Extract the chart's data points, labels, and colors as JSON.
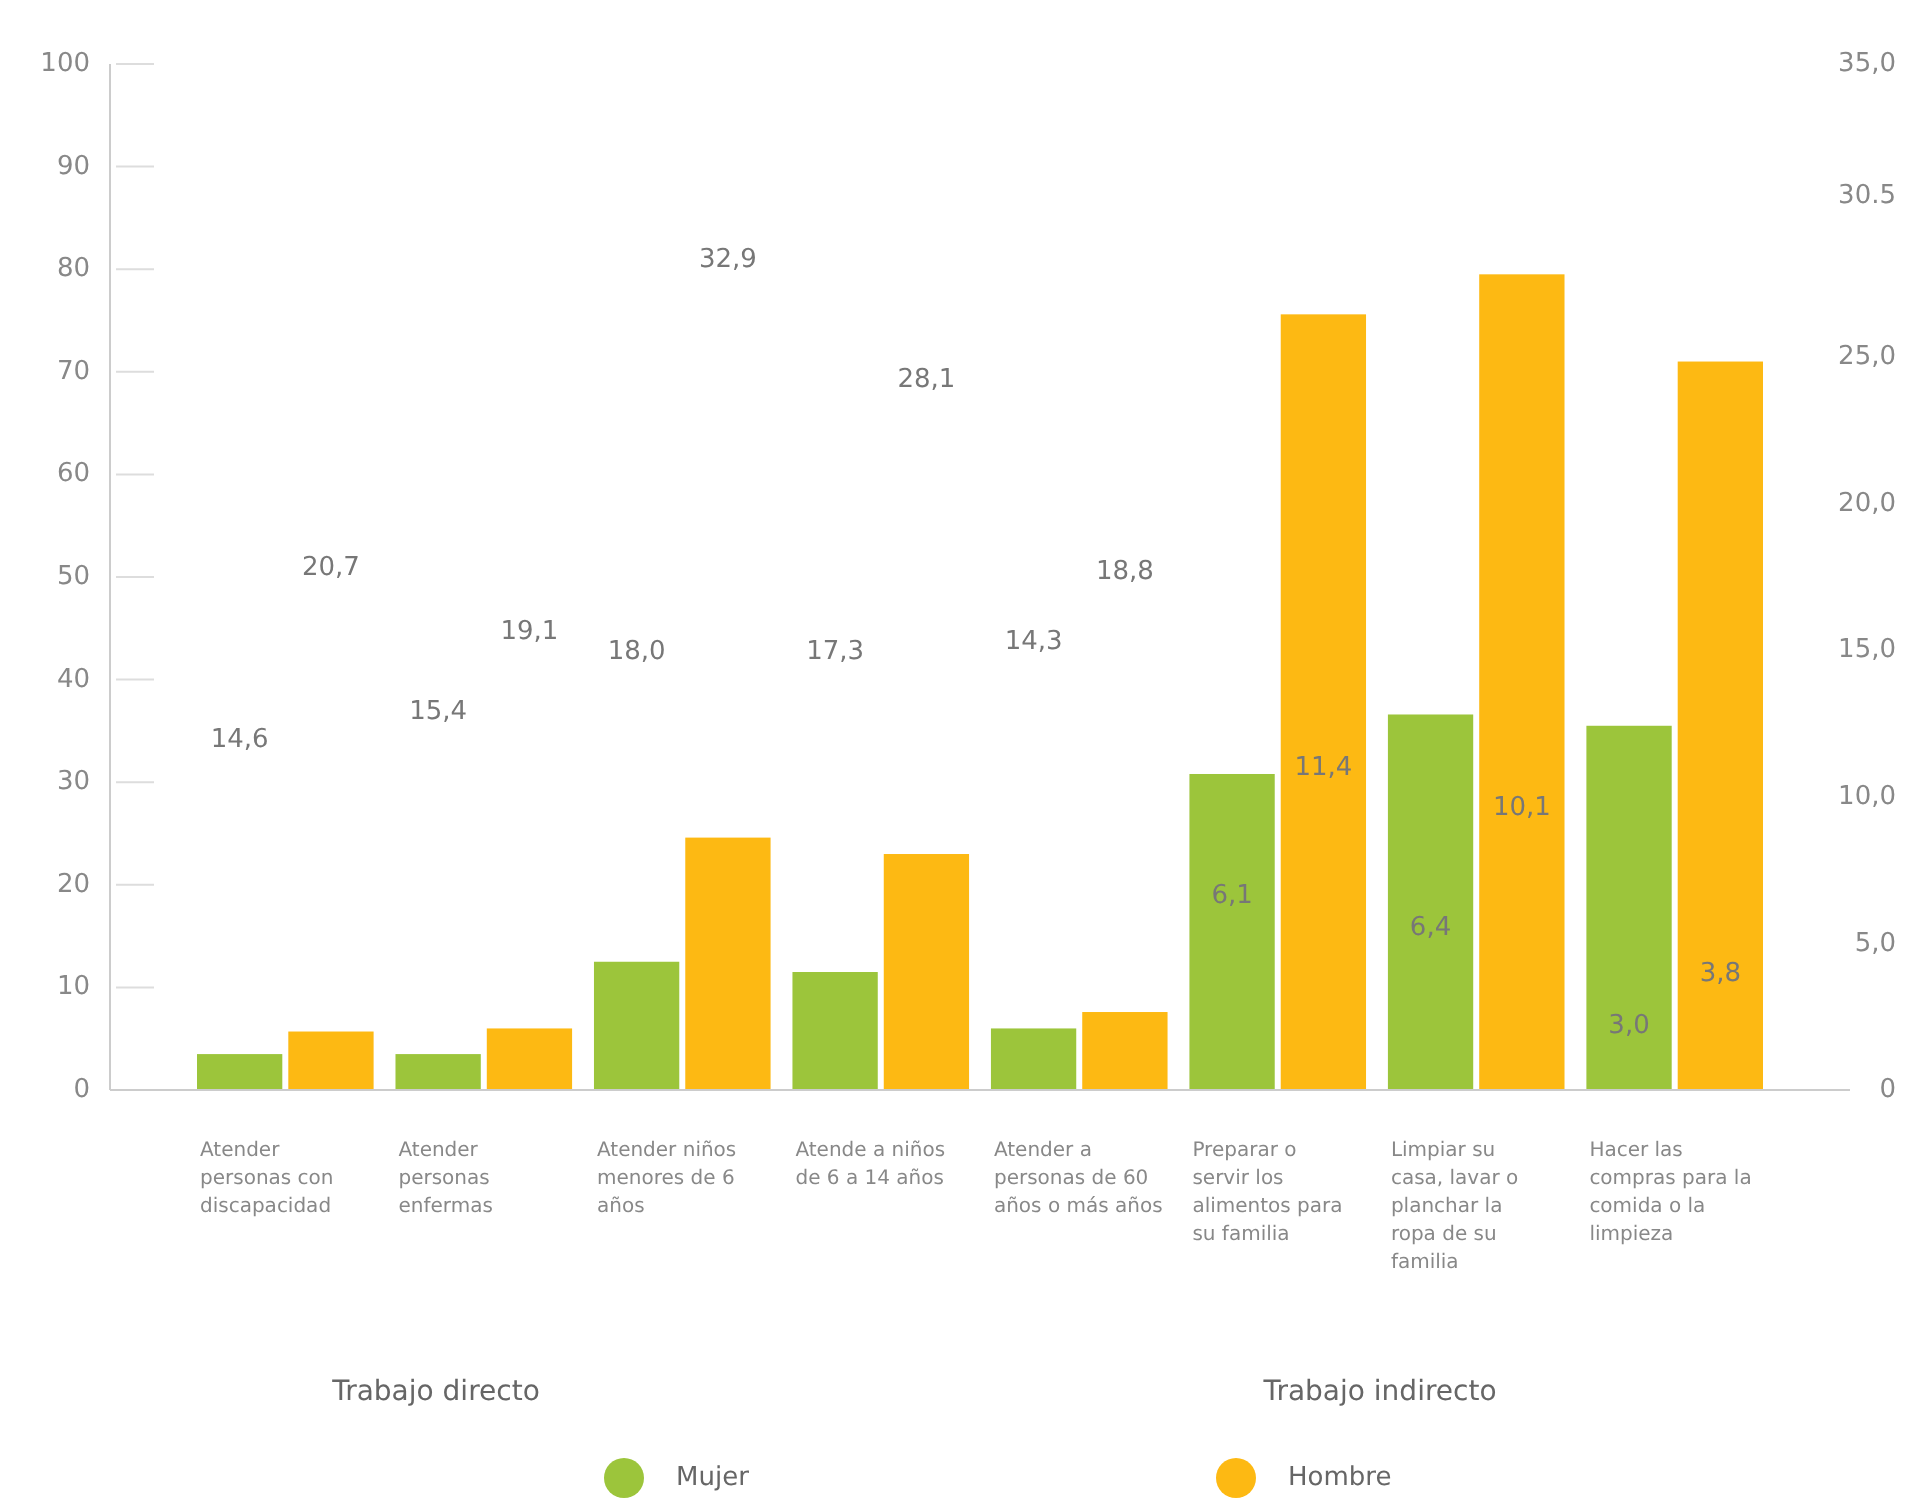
{
  "chart_data": {
    "type": "bar",
    "categories": [
      "Atender personas con discapacidad",
      "Atender personas enfermas",
      "Atender niños menores de 6 años",
      "Atende a niños de 6 a 14 años",
      "Atender a personas de 60 años o más años",
      "Preparar o servir los alimentos para su familia",
      "Limpiar su casa, lavar o planchar la ropa de su familia",
      "Hacer las compras para la comida o la limpieza"
    ],
    "series": [
      {
        "name": "Mujer",
        "color": "#9cc53b",
        "values": [
          3.5,
          3.5,
          12.5,
          11.5,
          6.0,
          30.8,
          36.6,
          35.5
        ]
      },
      {
        "name": "Hombre",
        "color": "#fdb913",
        "values": [
          5.7,
          6.0,
          24.6,
          23.0,
          7.6,
          75.6,
          79.5,
          71.0
        ]
      }
    ],
    "ylim": [
      0,
      100
    ],
    "yticks": [
      0,
      10,
      20,
      30,
      40,
      50,
      60,
      70,
      80,
      90,
      100
    ],
    "y2lim": [
      0,
      35
    ],
    "y2ticks": [
      {
        "value": 0,
        "label": "0"
      },
      {
        "value": 5,
        "label": "5,0"
      },
      {
        "value": 10,
        "label": "10,0"
      },
      {
        "value": 15,
        "label": "15,0"
      },
      {
        "value": 20,
        "label": "20,0"
      },
      {
        "value": 25,
        "label": "25,0"
      },
      30.5,
      {
        "value": 35,
        "label": "35,0"
      }
    ],
    "legend": "bottom",
    "grid": false,
    "annotations": [
      "14,6",
      "20,7",
      "15,4",
      "19,1",
      "18,0",
      "32,9",
      "17,3",
      "28,1",
      "14,3",
      "18,8",
      "6,1",
      "11,4",
      "6,4",
      "10,1",
      "3,0",
      "3,8",
      "Trabajo directo",
      "Trabajo indirecto"
    ]
  }
}
